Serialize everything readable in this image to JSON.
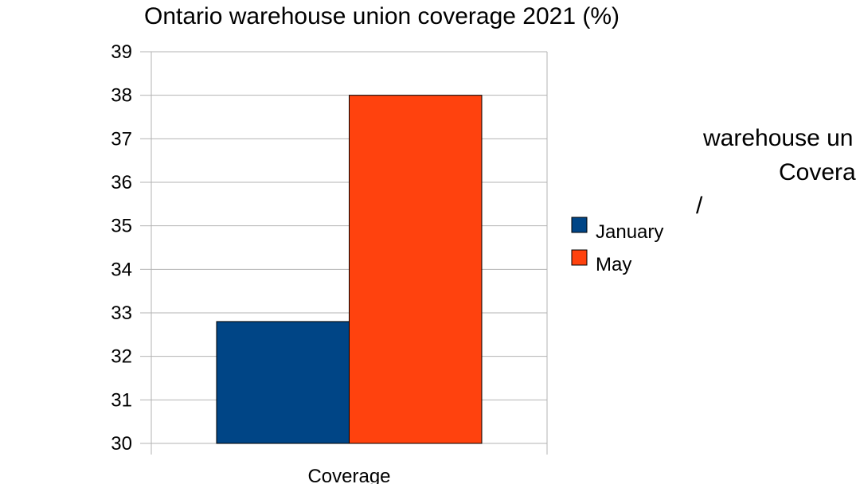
{
  "chart_data": {
    "type": "bar",
    "title": "Ontario warehouse union coverage 2021 (%)",
    "categories": [
      "Coverage"
    ],
    "series": [
      {
        "name": "January",
        "values": [
          32.8
        ],
        "color": "#004586"
      },
      {
        "name": "May",
        "values": [
          38.0
        ],
        "color": "#ff420e"
      }
    ],
    "ylim": [
      30,
      39
    ],
    "yticks": [
      30,
      31,
      32,
      33,
      34,
      35,
      36,
      37,
      38,
      39
    ],
    "grid": true,
    "legend": "right"
  },
  "overlay": {
    "line1": "warehouse un",
    "line2": "Covera",
    "mark": "/"
  }
}
